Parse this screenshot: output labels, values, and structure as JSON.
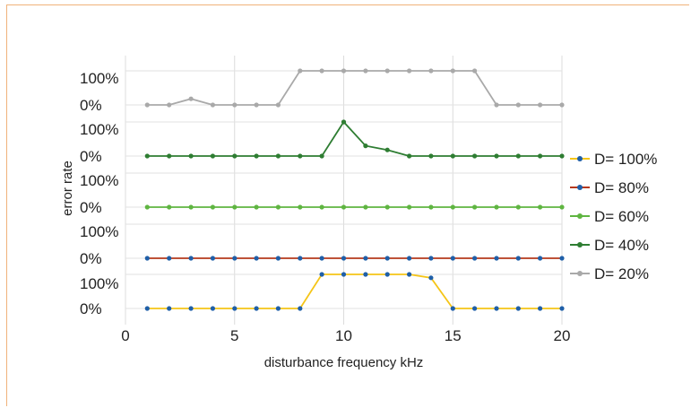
{
  "chart_data": {
    "type": "line",
    "xlabel": "disturbance frequency kHz",
    "ylabel": "error rate",
    "xlim": [
      0,
      20
    ],
    "x_ticks": [
      0,
      5,
      10,
      15,
      20
    ],
    "y_tick_labels": [
      "0%",
      "100%"
    ],
    "grid": true,
    "legend_position": "right",
    "x": [
      1,
      2,
      3,
      4,
      5,
      6,
      7,
      8,
      9,
      10,
      11,
      12,
      13,
      14,
      15,
      16,
      17,
      18,
      19,
      20
    ],
    "series": [
      {
        "name": "D= 100%",
        "line_color": "#f5c518",
        "marker_color": "#1f5fa8",
        "values": [
          0,
          0,
          0,
          0,
          0,
          0,
          0,
          0,
          1.0,
          1.0,
          1.0,
          1.0,
          1.0,
          0.9,
          0,
          0,
          0,
          0,
          0,
          0
        ]
      },
      {
        "name": "D= 80%",
        "line_color": "#b5391c",
        "marker_color": "#1f5fa8",
        "values": [
          0,
          0,
          0,
          0,
          0,
          0,
          0,
          0,
          0,
          0,
          0,
          0,
          0,
          0,
          0,
          0,
          0,
          0,
          0,
          0
        ]
      },
      {
        "name": "D= 60%",
        "line_color": "#5fb541",
        "marker_color": "#5fb541",
        "values": [
          0,
          0,
          0,
          0,
          0,
          0,
          0,
          0,
          0,
          0,
          0,
          0,
          0,
          0,
          0,
          0,
          0,
          0,
          0,
          0
        ]
      },
      {
        "name": "D= 40%",
        "line_color": "#2e7d32",
        "marker_color": "#2e7d32",
        "values": [
          0,
          0,
          0,
          0,
          0,
          0,
          0,
          0,
          0,
          1.0,
          0.3,
          0.18,
          0,
          0,
          0,
          0,
          0,
          0,
          0,
          0
        ]
      },
      {
        "name": "D= 20%",
        "line_color": "#a9a9a9",
        "marker_color": "#a9a9a9",
        "values": [
          0,
          0,
          0.18,
          0,
          0,
          0,
          0,
          1.0,
          1.0,
          1.0,
          1.0,
          1.0,
          1.0,
          1.0,
          1.0,
          1.0,
          0,
          0,
          0,
          0
        ]
      }
    ]
  }
}
